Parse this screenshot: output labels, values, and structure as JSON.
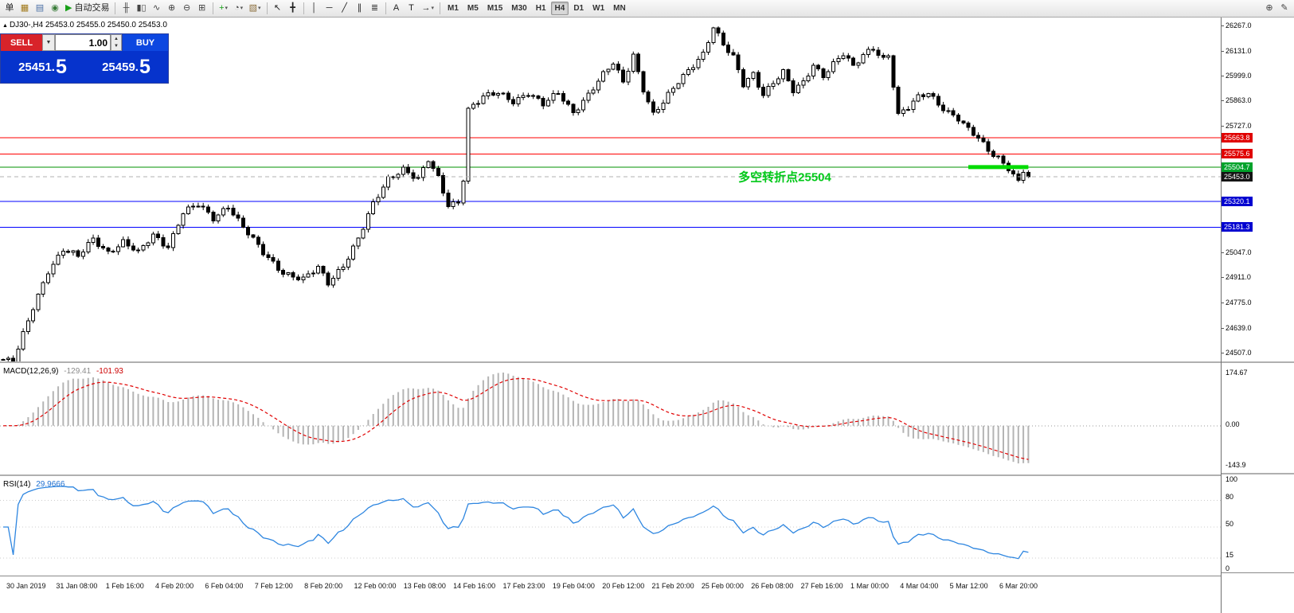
{
  "toolbar": {
    "items": [
      {
        "name": "new-order-icon",
        "glyph": "单",
        "color": "#222"
      },
      {
        "name": "chart-window-icon",
        "glyph": "▦",
        "color": "#a07818"
      },
      {
        "name": "profiles-icon",
        "glyph": "▤",
        "color": "#4a6fa5"
      },
      {
        "name": "refresh-icon",
        "glyph": "◉",
        "color": "#3a7d3a"
      },
      {
        "name": "autotrade-button",
        "glyph": "▶",
        "label": "自动交易",
        "color": "#18a018"
      },
      {
        "name": "separator"
      },
      {
        "name": "bars-chart-icon",
        "glyph": "╫",
        "color": "#444"
      },
      {
        "name": "candles-chart-icon",
        "glyph": "▮▯",
        "color": "#444"
      },
      {
        "name": "line-chart-icon",
        "glyph": "∿",
        "color": "#444"
      },
      {
        "name": "zoom-in-icon",
        "glyph": "⊕",
        "color": "#444"
      },
      {
        "name": "zoom-out-icon",
        "glyph": "⊖",
        "color": "#444"
      },
      {
        "name": "tile-windows-icon",
        "glyph": "⊞",
        "color": "#444"
      },
      {
        "name": "separator"
      },
      {
        "name": "indicators-icon",
        "glyph": "+",
        "color": "#18a018",
        "dropdown": true
      },
      {
        "name": "periods-icon",
        "glyph": "◔",
        "color": "#444",
        "dropdown": true
      },
      {
        "name": "templates-icon",
        "glyph": "▧",
        "color": "#8a6d3b",
        "dropdown": true
      },
      {
        "name": "separator"
      },
      {
        "name": "cursor-icon",
        "glyph": "↖",
        "color": "#222"
      },
      {
        "name": "crosshair-icon",
        "glyph": "╋",
        "color": "#222"
      },
      {
        "name": "separator"
      },
      {
        "name": "vertical-line-icon",
        "glyph": "│",
        "color": "#222"
      },
      {
        "name": "horizontal-line-icon",
        "glyph": "─",
        "color": "#222"
      },
      {
        "name": "trendline-icon",
        "glyph": "╱",
        "color": "#222"
      },
      {
        "name": "channel-icon",
        "glyph": "∥",
        "color": "#222"
      },
      {
        "name": "fibonacci-icon",
        "glyph": "≣",
        "color": "#222"
      },
      {
        "name": "separator"
      },
      {
        "name": "text-icon",
        "glyph": "A",
        "color": "#222"
      },
      {
        "name": "text-label-icon",
        "glyph": "T",
        "color": "#222"
      },
      {
        "name": "arrows-icon",
        "glyph": "→",
        "color": "#222",
        "dropdown": true
      },
      {
        "name": "separator"
      }
    ],
    "timeframes": [
      {
        "label": "M1"
      },
      {
        "label": "M5"
      },
      {
        "label": "M15"
      },
      {
        "label": "M30"
      },
      {
        "label": "H1"
      },
      {
        "label": "H4",
        "active": true
      },
      {
        "label": "D1"
      },
      {
        "label": "W1"
      },
      {
        "label": "MN"
      }
    ],
    "right_items": [
      {
        "name": "search-plus-icon",
        "glyph": "⊕",
        "color": "#444"
      },
      {
        "name": "draw-icon",
        "glyph": "✎",
        "color": "#444"
      }
    ]
  },
  "trade_panel": {
    "sell_label": "SELL",
    "buy_label": "BUY",
    "lot_value": "1.00",
    "sell_price_int": "25451.",
    "sell_price_dec": "5",
    "buy_price_int": "25459.",
    "buy_price_dec": "5",
    "sell_dd_glyph": "▼",
    "spin_up_glyph": "▲",
    "spin_down_glyph": "▼",
    "marker_glyph": "▲"
  },
  "chart_data": {
    "type": "candlestick",
    "symbol": "DJ30-",
    "timeframe": "H4",
    "title_text": "DJ30-,H4 25453.0 25455.0 25450.0 25453.0",
    "price_axis": {
      "view_max": 26310,
      "view_min": 24450,
      "tick_labels": [
        {
          "text": "26267.0",
          "price": 26267
        },
        {
          "text": "26131.0",
          "price": 26131
        },
        {
          "text": "25999.0",
          "price": 25999
        },
        {
          "text": "25863.0",
          "price": 25863
        },
        {
          "text": "25727.0",
          "price": 25727
        },
        {
          "text": "25047.0",
          "price": 25047
        },
        {
          "text": "24911.0",
          "price": 24911
        },
        {
          "text": "24775.0",
          "price": 24775
        },
        {
          "text": "24639.0",
          "price": 24639
        },
        {
          "text": "24507.0",
          "price": 24507
        }
      ]
    },
    "candle_count": 206,
    "close_keyframes": [
      [
        0,
        24470
      ],
      [
        2,
        24450
      ],
      [
        4,
        24600
      ],
      [
        6,
        24750
      ],
      [
        9,
        24950
      ],
      [
        12,
        25060
      ],
      [
        15,
        25020
      ],
      [
        18,
        25120
      ],
      [
        21,
        25050
      ],
      [
        24,
        25100
      ],
      [
        27,
        25040
      ],
      [
        30,
        25140
      ],
      [
        33,
        25080
      ],
      [
        36,
        25260
      ],
      [
        39,
        25300
      ],
      [
        42,
        25230
      ],
      [
        45,
        25300
      ],
      [
        48,
        25180
      ],
      [
        52,
        25040
      ],
      [
        56,
        24940
      ],
      [
        60,
        24900
      ],
      [
        63,
        24960
      ],
      [
        65,
        24880
      ],
      [
        68,
        24980
      ],
      [
        71,
        25120
      ],
      [
        74,
        25300
      ],
      [
        77,
        25440
      ],
      [
        80,
        25500
      ],
      [
        83,
        25440
      ],
      [
        85,
        25540
      ],
      [
        87,
        25440
      ],
      [
        89,
        25300
      ],
      [
        91,
        25320
      ],
      [
        92,
        25450
      ],
      [
        93,
        25820
      ],
      [
        96,
        25880
      ],
      [
        99,
        25900
      ],
      [
        102,
        25860
      ],
      [
        105,
        25910
      ],
      [
        108,
        25840
      ],
      [
        111,
        25900
      ],
      [
        114,
        25800
      ],
      [
        117,
        25900
      ],
      [
        120,
        26000
      ],
      [
        122,
        26060
      ],
      [
        124,
        25960
      ],
      [
        126,
        26110
      ],
      [
        128,
        25930
      ],
      [
        130,
        25790
      ],
      [
        132,
        25850
      ],
      [
        135,
        25960
      ],
      [
        138,
        26060
      ],
      [
        140,
        26120
      ],
      [
        142,
        26260
      ],
      [
        144,
        26160
      ],
      [
        146,
        26090
      ],
      [
        148,
        25950
      ],
      [
        150,
        26010
      ],
      [
        152,
        25900
      ],
      [
        154,
        25960
      ],
      [
        156,
        26010
      ],
      [
        158,
        25910
      ],
      [
        160,
        25960
      ],
      [
        162,
        26060
      ],
      [
        164,
        26000
      ],
      [
        166,
        26060
      ],
      [
        168,
        26110
      ],
      [
        170,
        26040
      ],
      [
        172,
        26110
      ],
      [
        174,
        26150
      ],
      [
        176,
        26090
      ],
      [
        177,
        26110
      ],
      [
        179,
        25780
      ],
      [
        181,
        25820
      ],
      [
        183,
        25880
      ],
      [
        185,
        25910
      ],
      [
        187,
        25850
      ],
      [
        189,
        25800
      ],
      [
        191,
        25760
      ],
      [
        193,
        25700
      ],
      [
        195,
        25660
      ],
      [
        197,
        25600
      ],
      [
        199,
        25560
      ],
      [
        201,
        25500
      ],
      [
        203,
        25420
      ],
      [
        204,
        25480
      ],
      [
        205,
        25453
      ]
    ],
    "horizontal_lines": [
      {
        "price": 25663.8,
        "label": "25663.8",
        "color": "#ff0000",
        "badge": "#e00000"
      },
      {
        "price": 25575.6,
        "label": "25575.6",
        "color": "#ff0000",
        "badge": "#e00000"
      },
      {
        "price": 25504.7,
        "label": "25504.7",
        "color": "#009000",
        "badge": "#00a22a"
      },
      {
        "price": 25320.1,
        "label": "25320.1",
        "color": "#0000ff",
        "badge": "#0000d0"
      },
      {
        "price": 25181.3,
        "label": "25181.3",
        "color": "#0000ff",
        "badge": "#0000d0"
      }
    ],
    "current_price": {
      "price": 25453.0,
      "label": "25453.0",
      "badge": "#141414",
      "line_color": "#b0b0b0"
    },
    "highlight_segment": {
      "price": 25504.7,
      "from_index": 193,
      "to_index": 205,
      "color": "#00dc00",
      "width": 5
    },
    "annotation": {
      "text": "多空转折点25504",
      "price": 25430,
      "index": 147,
      "color": "#00c818",
      "font_size": 15
    },
    "time_axis_labels": [
      "30 Jan 2019",
      "31 Jan 08:00",
      "1 Feb 16:00",
      "4 Feb 20:00",
      "6 Feb 04:00",
      "7 Feb 12:00",
      "8 Feb 20:00",
      "12 Feb 00:00",
      "13 Feb 08:00",
      "14 Feb 16:00",
      "17 Feb 23:00",
      "19 Feb 04:00",
      "20 Feb 12:00",
      "21 Feb 20:00",
      "25 Feb 00:00",
      "26 Feb 08:00",
      "27 Feb 16:00",
      "1 Mar 00:00",
      "4 Mar 04:00",
      "5 Mar 12:00",
      "6 Mar 20:00"
    ],
    "indicators": {
      "macd": {
        "label": "MACD(12,26,9)",
        "value1": "-129.41",
        "value2": "-101.93",
        "fast": 12,
        "slow": 26,
        "signal": 9,
        "scale_labels": [
          {
            "text": "174.67",
            "value": 174.67
          },
          {
            "text": "0.00",
            "value": 0
          },
          {
            "text": "-143.9",
            "value": -143.9
          }
        ],
        "histogram_color": "#b4b4b4",
        "signal_color": "#e00000"
      },
      "rsi": {
        "label": "RSI(14)",
        "value": "29.9666",
        "period": 14,
        "scale_labels": [
          {
            "text": "100",
            "value": 100
          },
          {
            "text": "80",
            "value": 80
          },
          {
            "text": "50",
            "value": 50
          },
          {
            "text": "15",
            "value": 15
          },
          {
            "text": "0",
            "value": 0
          }
        ],
        "levels": [
          80,
          50,
          15
        ],
        "line_color": "#2e86e0"
      }
    },
    "candle_up_fill": "#ffffff",
    "candle_down_fill": "#000000",
    "candle_stroke": "#000000"
  }
}
